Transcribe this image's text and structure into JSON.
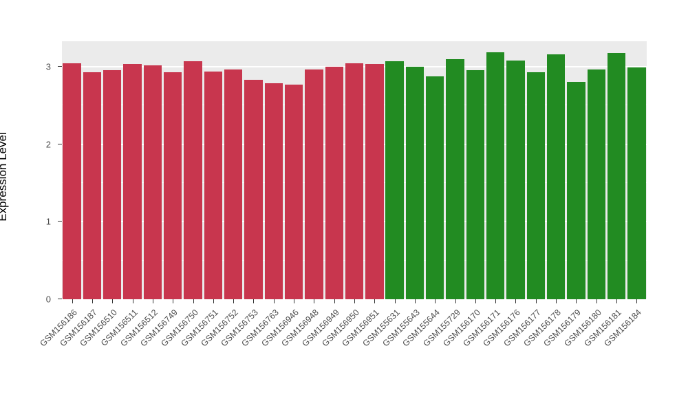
{
  "chart_data": {
    "type": "bar",
    "title": "",
    "xlabel": "",
    "ylabel": "Expression Level",
    "ylim": [
      0,
      3.33
    ],
    "yticks": [
      0,
      1,
      2,
      3
    ],
    "yticks_minor": [
      0.5,
      1.5,
      2.5
    ],
    "grid": true,
    "legend": "none",
    "panel_background": "#EBEBEB",
    "colors": {
      "group1": "#C8364E",
      "group2": "#228B22"
    },
    "bars": [
      {
        "label": "GSM156186",
        "value": 3.05,
        "group": "group1"
      },
      {
        "label": "GSM156187",
        "value": 2.93,
        "group": "group1"
      },
      {
        "label": "GSM156510",
        "value": 2.96,
        "group": "group1"
      },
      {
        "label": "GSM156511",
        "value": 3.04,
        "group": "group1"
      },
      {
        "label": "GSM156512",
        "value": 3.02,
        "group": "group1"
      },
      {
        "label": "GSM156749",
        "value": 2.93,
        "group": "group1"
      },
      {
        "label": "GSM156750",
        "value": 3.07,
        "group": "group1"
      },
      {
        "label": "GSM156751",
        "value": 2.94,
        "group": "group1"
      },
      {
        "label": "GSM156752",
        "value": 2.97,
        "group": "group1"
      },
      {
        "label": "GSM156753",
        "value": 2.83,
        "group": "group1"
      },
      {
        "label": "GSM156763",
        "value": 2.79,
        "group": "group1"
      },
      {
        "label": "GSM156946",
        "value": 2.77,
        "group": "group1"
      },
      {
        "label": "GSM156948",
        "value": 2.97,
        "group": "group1"
      },
      {
        "label": "GSM156949",
        "value": 3.0,
        "group": "group1"
      },
      {
        "label": "GSM156950",
        "value": 3.05,
        "group": "group1"
      },
      {
        "label": "GSM156951",
        "value": 3.04,
        "group": "group1"
      },
      {
        "label": "GSM155631",
        "value": 3.07,
        "group": "group2"
      },
      {
        "label": "GSM155643",
        "value": 3.0,
        "group": "group2"
      },
      {
        "label": "GSM155644",
        "value": 2.88,
        "group": "group2"
      },
      {
        "label": "GSM155729",
        "value": 3.1,
        "group": "group2"
      },
      {
        "label": "GSM156170",
        "value": 2.96,
        "group": "group2"
      },
      {
        "label": "GSM156171",
        "value": 3.19,
        "group": "group2"
      },
      {
        "label": "GSM156176",
        "value": 3.08,
        "group": "group2"
      },
      {
        "label": "GSM156177",
        "value": 2.93,
        "group": "group2"
      },
      {
        "label": "GSM156178",
        "value": 3.16,
        "group": "group2"
      },
      {
        "label": "GSM156179",
        "value": 2.81,
        "group": "group2"
      },
      {
        "label": "GSM156180",
        "value": 2.97,
        "group": "group2"
      },
      {
        "label": "GSM156181",
        "value": 3.18,
        "group": "group2"
      },
      {
        "label": "GSM156184",
        "value": 2.99,
        "group": "group2"
      }
    ]
  }
}
